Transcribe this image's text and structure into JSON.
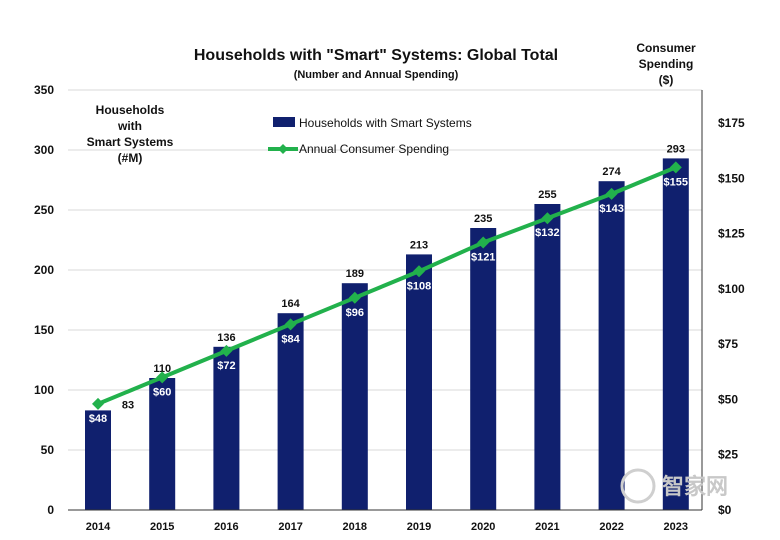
{
  "chart_data": {
    "type": "bar",
    "title": "Households with \"Smart\" Systems: Global Total",
    "subtitle": "(Number and Annual Spending)",
    "categories": [
      "2014",
      "2015",
      "2016",
      "2017",
      "2018",
      "2019",
      "2020",
      "2021",
      "2022",
      "2023"
    ],
    "series": [
      {
        "name": "Households with Smart Systems",
        "type": "bar",
        "axis": "left",
        "values": [
          83,
          110,
          136,
          164,
          189,
          213,
          235,
          255,
          274,
          293
        ],
        "labels": [
          "83",
          "110",
          "136",
          "164",
          "189",
          "213",
          "235",
          "255",
          "274",
          "293"
        ],
        "color": "#10206e"
      },
      {
        "name": "Annual Consumer Spending",
        "type": "line",
        "axis": "right",
        "values": [
          48,
          60,
          72,
          84,
          96,
          108,
          121,
          132,
          143,
          155
        ],
        "labels": [
          "$48",
          "$60",
          "$72",
          "$84",
          "$96",
          "$108",
          "$121",
          "$132",
          "$143",
          "$155"
        ],
        "color": "#22b14c"
      }
    ],
    "y_left": {
      "title_lines": [
        "Households",
        "with",
        "Smart Systems",
        "(#M)"
      ],
      "range": [
        0,
        350
      ],
      "ticks": [
        0,
        50,
        100,
        150,
        200,
        250,
        300,
        350
      ],
      "tick_labels": [
        "0",
        "50",
        "100",
        "150",
        "200",
        "250",
        "300",
        "350"
      ]
    },
    "y_right": {
      "title_lines": [
        "Consumer",
        "Spending",
        "($)"
      ],
      "range": [
        0,
        190
      ],
      "ticks": [
        0,
        25,
        50,
        75,
        100,
        125,
        150,
        175
      ],
      "tick_labels": [
        "$0",
        "$25",
        "$50",
        "$75",
        "$100",
        "$125",
        "$150",
        "$175"
      ]
    },
    "grid": true,
    "legend_position": "top-center"
  },
  "watermark": "智家网"
}
